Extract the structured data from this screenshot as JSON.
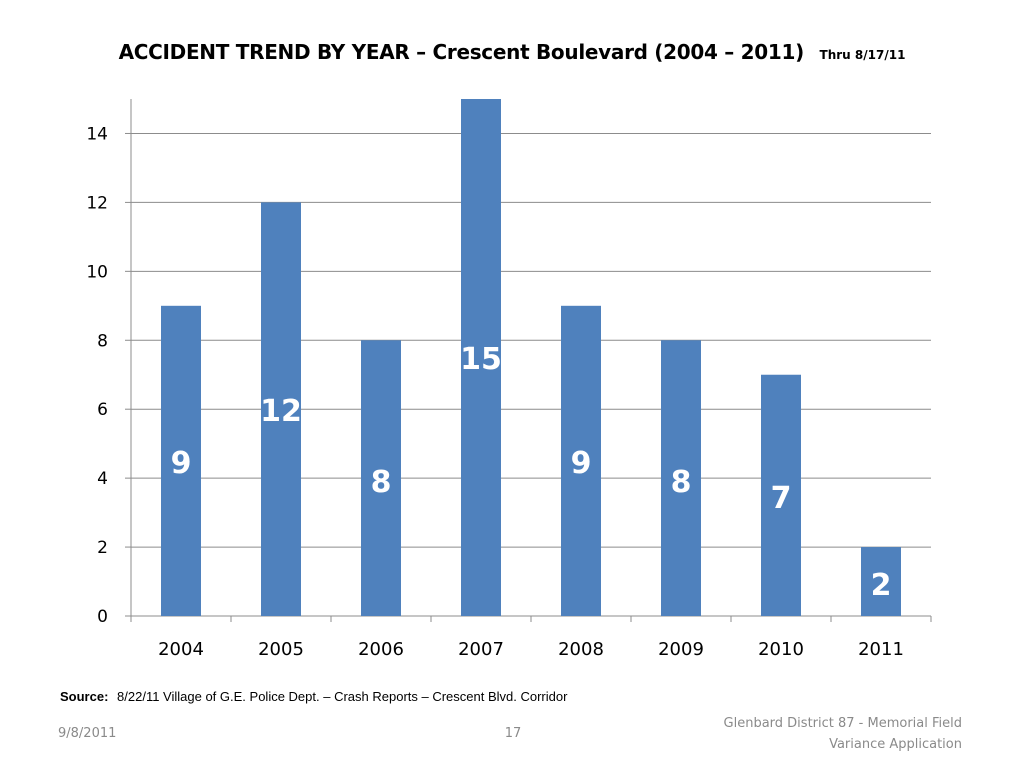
{
  "slide": {
    "title": "ACCIDENT TREND BY YEAR – Crescent Boulevard (2004 – 2011)",
    "title_note": "Thru 8/17/11",
    "source_label": "Source:",
    "source_text": "8/22/11 Village of G.E. Police Dept. – Crash Reports – Crescent Blvd. Corridor",
    "footer_date": "9/8/2011",
    "footer_page": "17",
    "footer_org_line1": "Glenbard District 87 - Memorial Field",
    "footer_org_line2": "Variance Application"
  },
  "chart_data": {
    "type": "bar",
    "categories": [
      "2004",
      "2005",
      "2006",
      "2007",
      "2008",
      "2009",
      "2010",
      "2011"
    ],
    "values": [
      9,
      12,
      8,
      15,
      9,
      8,
      7,
      2
    ],
    "data_labels": [
      "9",
      "12",
      "8",
      "15",
      "9",
      "8",
      "7",
      "2"
    ],
    "title": "",
    "xlabel": "",
    "ylabel": "",
    "ylim": [
      0,
      15
    ],
    "yticks": [
      "0",
      "2",
      "4",
      "6",
      "8",
      "10",
      "12",
      "14"
    ],
    "grid": true,
    "legend": "none",
    "bar_color": "#4f81bd",
    "label_color": "#ffffff"
  }
}
